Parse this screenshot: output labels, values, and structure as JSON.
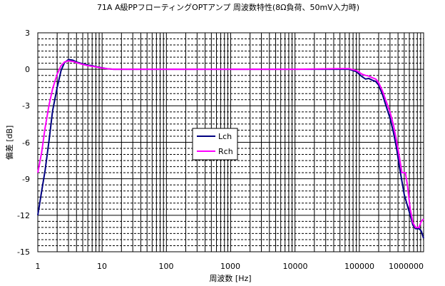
{
  "chart_data": {
    "type": "line",
    "title": "71A A級PPフローティングOPTアンプ 周波数特性(8Ω負荷、50mV入力時)",
    "xlabel": "周波数 [Hz]",
    "ylabel": "偏差 [dB]",
    "x_scale": "log",
    "xlim": [
      1,
      1000000
    ],
    "ylim": [
      -15,
      3
    ],
    "x_ticks": [
      "1",
      "10",
      "100",
      "1000",
      "10000",
      "100000",
      "1000000"
    ],
    "y_ticks": [
      "3",
      "0",
      "-3",
      "-6",
      "-9",
      "-12",
      "-15"
    ],
    "grid": true,
    "legend_position": "center-left",
    "series": [
      {
        "name": "Lch",
        "color": "#000080",
        "points": [
          [
            1,
            -12
          ],
          [
            1.15,
            -10
          ],
          [
            1.3,
            -8.3
          ],
          [
            1.5,
            -5.8
          ],
          [
            1.7,
            -3.4
          ],
          [
            2,
            -1.5
          ],
          [
            2.3,
            -0.1
          ],
          [
            2.6,
            0.55
          ],
          [
            3,
            0.8
          ],
          [
            3.5,
            0.75
          ],
          [
            4,
            0.6
          ],
          [
            5,
            0.45
          ],
          [
            6,
            0.35
          ],
          [
            7,
            0.3
          ],
          [
            8,
            0.22
          ],
          [
            10,
            0.12
          ],
          [
            12,
            0.05
          ],
          [
            15,
            0
          ],
          [
            20,
            0
          ],
          [
            100,
            0
          ],
          [
            1000,
            0
          ],
          [
            10000,
            0
          ],
          [
            50000,
            0
          ],
          [
            70000,
            0
          ],
          [
            90000,
            -0.2
          ],
          [
            110000,
            -0.6
          ],
          [
            125000,
            -0.8
          ],
          [
            140000,
            -0.75
          ],
          [
            160000,
            -0.9
          ],
          [
            180000,
            -1.0
          ],
          [
            200000,
            -1.3
          ],
          [
            230000,
            -2.1
          ],
          [
            260000,
            -3.0
          ],
          [
            300000,
            -4.0
          ],
          [
            340000,
            -5.2
          ],
          [
            380000,
            -6.5
          ],
          [
            420000,
            -8.0
          ],
          [
            460000,
            -9.2
          ],
          [
            500000,
            -10.3
          ],
          [
            560000,
            -11.2
          ],
          [
            620000,
            -12.0
          ],
          [
            680000,
            -12.8
          ],
          [
            750000,
            -13.1
          ],
          [
            850000,
            -13.1
          ],
          [
            920000,
            -13.3
          ],
          [
            1000000,
            -13.9
          ]
        ]
      },
      {
        "name": "Rch",
        "color": "#ff00ff",
        "points": [
          [
            1,
            -8.5
          ],
          [
            1.15,
            -6.8
          ],
          [
            1.3,
            -4.8
          ],
          [
            1.5,
            -2.9
          ],
          [
            1.7,
            -1.6
          ],
          [
            2,
            -0.4
          ],
          [
            2.3,
            0.3
          ],
          [
            2.6,
            0.6
          ],
          [
            3,
            0.7
          ],
          [
            3.5,
            0.65
          ],
          [
            4,
            0.55
          ],
          [
            5,
            0.4
          ],
          [
            6,
            0.3
          ],
          [
            7,
            0.25
          ],
          [
            8,
            0.2
          ],
          [
            10,
            0.1
          ],
          [
            12,
            0.05
          ],
          [
            15,
            0
          ],
          [
            20,
            0
          ],
          [
            100,
            0
          ],
          [
            1000,
            0
          ],
          [
            10000,
            0
          ],
          [
            50000,
            0.05
          ],
          [
            70000,
            0.05
          ],
          [
            90000,
            -0.1
          ],
          [
            110000,
            -0.4
          ],
          [
            125000,
            -0.5
          ],
          [
            140000,
            -0.55
          ],
          [
            160000,
            -0.7
          ],
          [
            180000,
            -0.8
          ],
          [
            200000,
            -1.1
          ],
          [
            230000,
            -1.8
          ],
          [
            260000,
            -2.6
          ],
          [
            300000,
            -3.5
          ],
          [
            340000,
            -4.6
          ],
          [
            380000,
            -5.9
          ],
          [
            420000,
            -7.2
          ],
          [
            460000,
            -8.5
          ],
          [
            520000,
            -8.5
          ],
          [
            560000,
            -9.5
          ],
          [
            620000,
            -11.5
          ],
          [
            680000,
            -12.6
          ],
          [
            750000,
            -13.0
          ],
          [
            850000,
            -13.0
          ],
          [
            920000,
            -12.5
          ],
          [
            1000000,
            -12.3
          ]
        ]
      }
    ]
  }
}
